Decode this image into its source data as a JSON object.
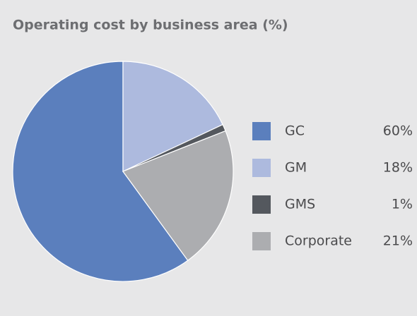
{
  "chart_data": {
    "type": "pie",
    "title": "Operating cost by business area (%)",
    "categories": [
      "GC",
      "GM",
      "GMS",
      "Corporate"
    ],
    "values": [
      60,
      18,
      1,
      21
    ],
    "value_labels": [
      "60%",
      "18%",
      "1%",
      "21%"
    ],
    "colors": [
      "#5b7fbd",
      "#adbade",
      "#54585e",
      "#acadb0"
    ],
    "legend": "right"
  }
}
